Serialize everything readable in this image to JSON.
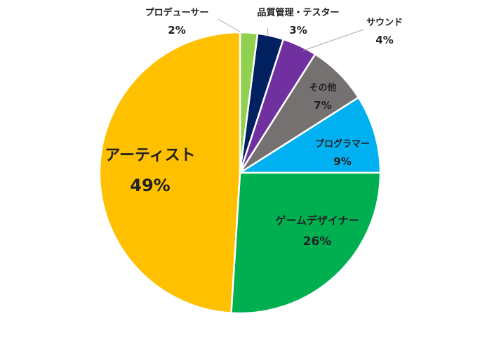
{
  "chart_data": {
    "type": "pie",
    "title": "",
    "start_angle_deg": 0,
    "direction": "clockwise",
    "slices": [
      {
        "label": "プロデューサー",
        "value": 2,
        "pct_label": "2%",
        "color": "#92D050",
        "label_color": "#222222"
      },
      {
        "label": "品質管理・テスター",
        "value": 3,
        "pct_label": "3%",
        "color": "#002060",
        "label_color": "#222222"
      },
      {
        "label": "サウンド",
        "value": 4,
        "pct_label": "4%",
        "color": "#7030A0",
        "label_color": "#222222"
      },
      {
        "label": "その他",
        "value": 7,
        "pct_label": "7%",
        "color": "#767171",
        "label_color": "#222222"
      },
      {
        "label": "プログラマー",
        "value": 9,
        "pct_label": "9%",
        "color": "#00B0F0",
        "label_color": "#222222"
      },
      {
        "label": "ゲームデザイナー",
        "value": 26,
        "pct_label": "26%",
        "color": "#00B050",
        "label_color": "#222222"
      },
      {
        "label": "アーティスト",
        "value": 49,
        "pct_label": "49%",
        "color": "#FFC000",
        "label_color": "#FF0000"
      }
    ]
  }
}
